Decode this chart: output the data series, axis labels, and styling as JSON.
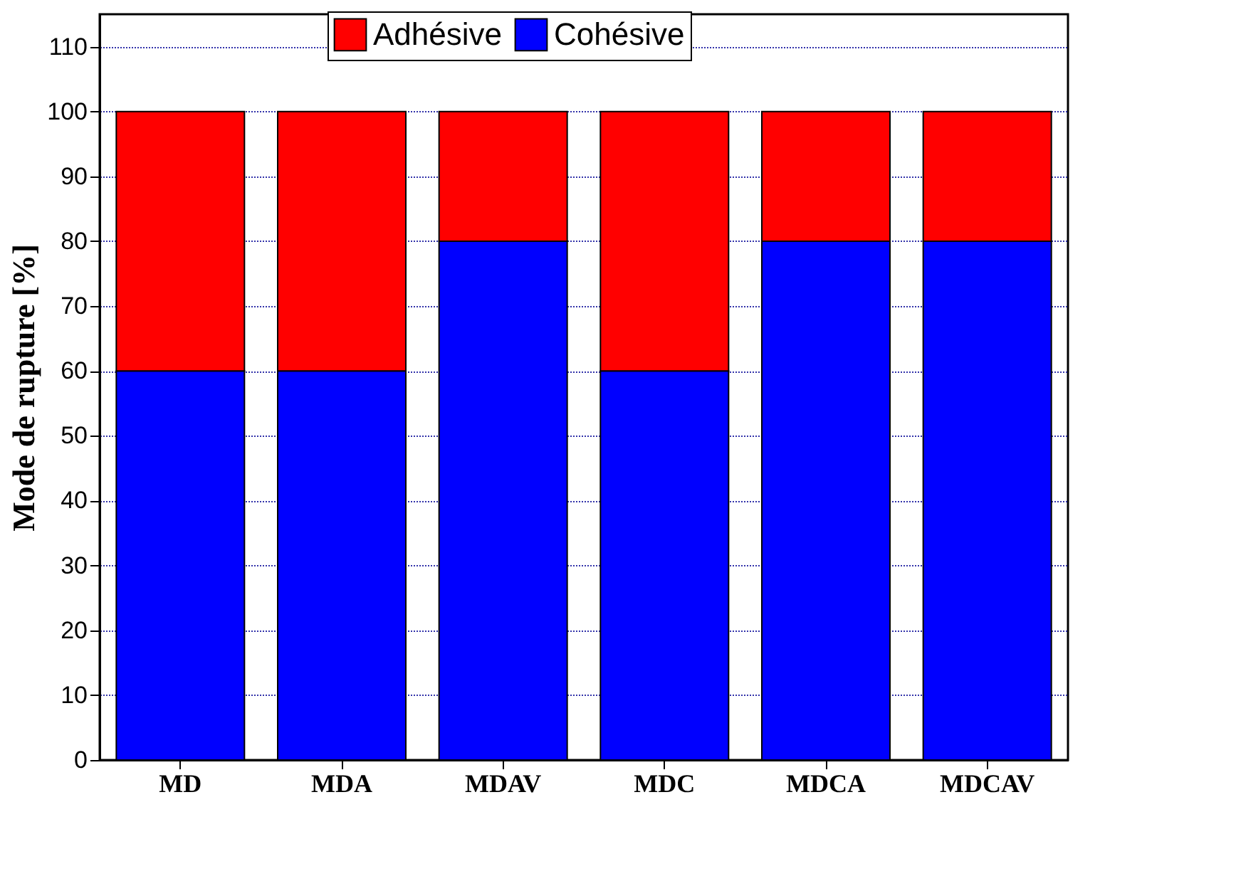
{
  "chart_data": {
    "type": "bar",
    "stacked": true,
    "ylabel": "Mode de rupture [%]",
    "categories": [
      "MD",
      "MDA",
      "MDAV",
      "MDC",
      "MDCA",
      "MDCAV"
    ],
    "series": [
      {
        "name": "Cohésive",
        "color": "#0000ff",
        "values": [
          60,
          60,
          80,
          60,
          80,
          80
        ]
      },
      {
        "name": "Adhésive",
        "color": "#ff0000",
        "values": [
          40,
          40,
          20,
          40,
          20,
          20
        ]
      }
    ],
    "ylim": [
      0,
      115
    ],
    "yticks": [
      0,
      10,
      20,
      30,
      40,
      50,
      60,
      70,
      80,
      90,
      100,
      110
    ],
    "grid": "y",
    "legend": "top"
  }
}
